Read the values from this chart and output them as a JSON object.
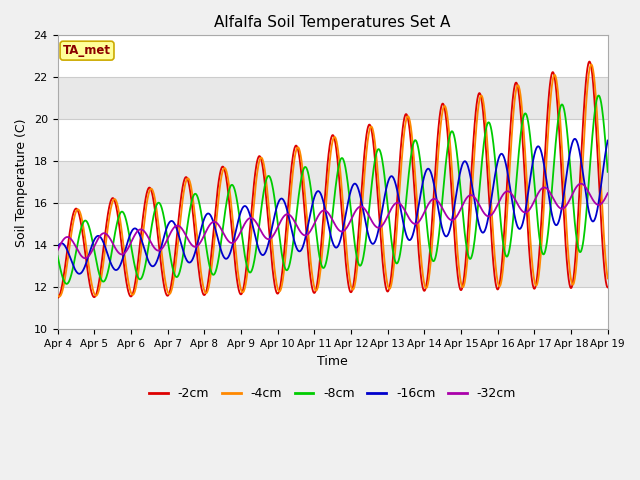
{
  "title": "Alfalfa Soil Temperatures Set A",
  "xlabel": "Time",
  "ylabel": "Soil Temperature (C)",
  "ylim": [
    10,
    24
  ],
  "annotation": "TA_met",
  "series_colors": {
    "-2cm": "#dd0000",
    "-4cm": "#ff8800",
    "-8cm": "#00cc00",
    "-16cm": "#0000cc",
    "-32cm": "#aa00aa"
  },
  "date_labels": [
    "Apr 4",
    "Apr 5",
    "Apr 6",
    "Apr 7",
    "Apr 8",
    "Apr 9",
    "Apr 10",
    "Apr 11",
    "Apr 12",
    "Apr 13",
    "Apr 14",
    "Apr 15",
    "Apr 16",
    "Apr 17",
    "Apr 18",
    "Apr 19"
  ],
  "band_colors": [
    "#ffffff",
    "#e8e8e8",
    "#ffffff",
    "#e8e8e8",
    "#ffffff",
    "#e8e8e8",
    "#ffffff"
  ],
  "grid_color": "#cccccc",
  "fig_bg": "#f0f0f0",
  "plot_bg": "#ffffff"
}
